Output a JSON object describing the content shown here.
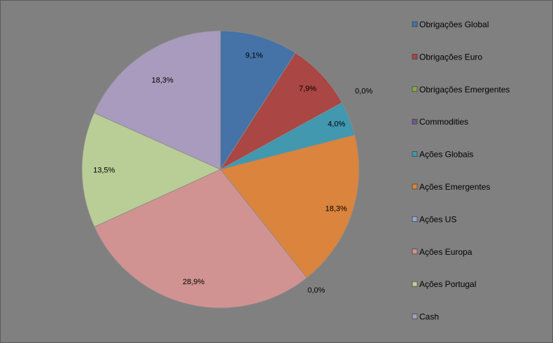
{
  "chart_data": {
    "type": "pie",
    "title": "",
    "start_angle_deg": 0,
    "direction": "clockwise",
    "legend_position": "right",
    "slices": [
      {
        "label": "Obrigações Global",
        "value": 9.1,
        "value_label": "9,1%",
        "color": "#4572A7"
      },
      {
        "label": "Obrigações Euro",
        "value": 7.9,
        "value_label": "7,9%",
        "color": "#AA4643"
      },
      {
        "label": "Obrigações Emergentes",
        "value": 0.0,
        "value_label": "0,0%",
        "color": "#89A54E"
      },
      {
        "label": "Commodities",
        "value": 0.0,
        "value_label": "",
        "color": "#71588F"
      },
      {
        "label": "Ações Globais",
        "value": 4.0,
        "value_label": "4,0%",
        "color": "#4198AF"
      },
      {
        "label": "Ações Emergentes",
        "value": 18.3,
        "value_label": "18,3%",
        "color": "#DB843D"
      },
      {
        "label": "Ações US",
        "value": 0.0,
        "value_label": "0,0%",
        "color": "#93A9CF"
      },
      {
        "label": "Ações Europa",
        "value": 28.9,
        "value_label": "28,9%",
        "color": "#D19392"
      },
      {
        "label": "Ações Portugal",
        "value": 13.5,
        "value_label": "13,5%",
        "color": "#B9CD96"
      },
      {
        "label": "Cash",
        "value": 18.3,
        "value_label": "18,3%",
        "color": "#A99BBD"
      }
    ]
  }
}
